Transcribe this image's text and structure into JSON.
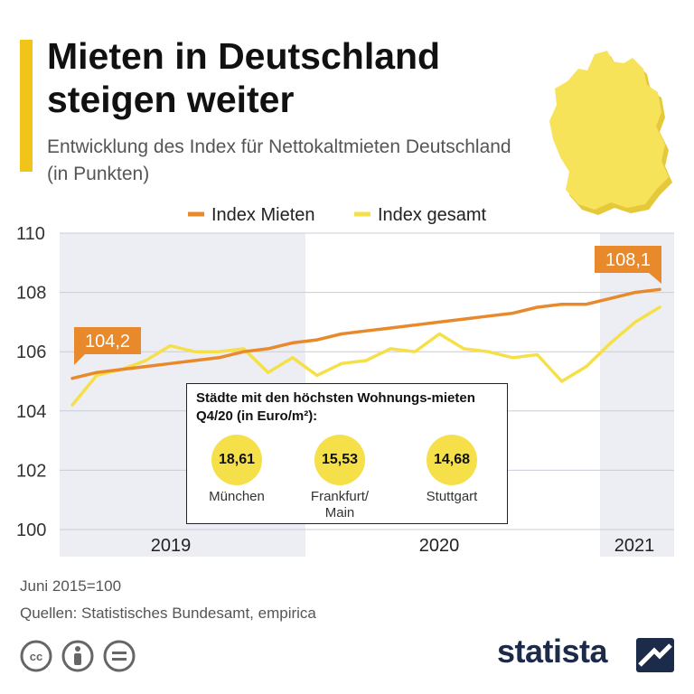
{
  "header": {
    "title": "Mieten in Deutschland steigen weiter",
    "subtitle": "Entwicklung des Index für Nettokaltmieten Deutschland (in Punkten)"
  },
  "colors": {
    "accent": "#f0c419",
    "mieten": "#e8892b",
    "gesamt": "#f5e04a",
    "shade": "#eceef4",
    "brand": "#1c2b4a"
  },
  "chart_data": {
    "type": "line",
    "title": "Mieten in Deutschland steigen weiter",
    "ylim": [
      100,
      110
    ],
    "yticks": [
      "110",
      "108",
      "106",
      "104",
      "102",
      "100"
    ],
    "year_labels": [
      "2019",
      "2020",
      "2021"
    ],
    "series": [
      {
        "name": "Index Mieten",
        "color": "#e8892b",
        "values": [
          105.1,
          105.3,
          105.4,
          105.5,
          105.6,
          105.7,
          105.8,
          106.0,
          106.1,
          106.3,
          106.4,
          106.6,
          106.7,
          106.8,
          106.9,
          107.0,
          107.1,
          107.2,
          107.3,
          107.5,
          107.6,
          107.6,
          107.8,
          108.0,
          108.1
        ]
      },
      {
        "name": "Index gesamt",
        "color": "#f5e04a",
        "values": [
          104.2,
          105.2,
          105.4,
          105.7,
          106.2,
          106.0,
          106.0,
          106.1,
          105.3,
          105.8,
          105.2,
          105.6,
          105.7,
          106.1,
          106.0,
          106.6,
          106.1,
          106.0,
          105.8,
          105.9,
          105.0,
          105.5,
          106.3,
          107.0,
          107.5
        ]
      }
    ],
    "callouts": {
      "start": "104,2",
      "end": "108,1"
    }
  },
  "inset": {
    "title": "Städte mit den höchsten Wohnungs-mieten Q4/20 (in Euro/m²):",
    "cities": [
      {
        "value": "18,61",
        "name": "München"
      },
      {
        "value": "15,53",
        "name": "Frankfurt/ Main"
      },
      {
        "value": "14,68",
        "name": "Stuttgart"
      }
    ]
  },
  "footer": {
    "note": "Juni 2015=100",
    "sources": "Quellen: Statistisches Bundesamt, empirica",
    "brand": "statista",
    "icons": [
      "cc-icon",
      "by-icon",
      "nd-icon"
    ]
  }
}
